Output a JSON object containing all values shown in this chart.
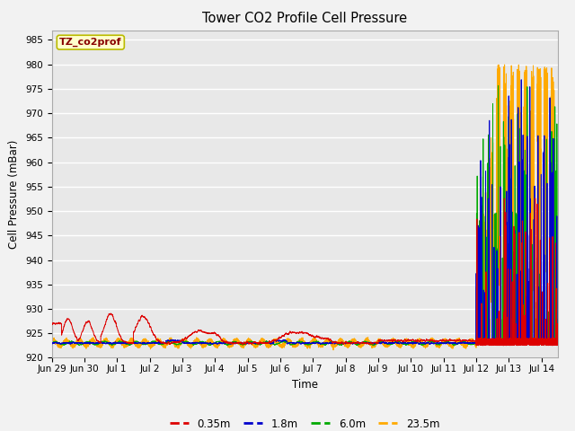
{
  "title": "Tower CO2 Profile Cell Pressure",
  "xlabel": "Time",
  "ylabel": "Cell Pressure (mBar)",
  "ylim": [
    920,
    987
  ],
  "yticks": [
    920,
    925,
    930,
    935,
    940,
    945,
    950,
    955,
    960,
    965,
    970,
    975,
    980,
    985
  ],
  "xtick_labels": [
    "Jun 29",
    "Jun 30",
    "Jul 1",
    "Jul 2",
    "Jul 3",
    "Jul 4",
    "Jul 5",
    "Jul 6",
    "Jul 7",
    "Jul 8",
    "Jul 9",
    "Jul 10",
    "Jul 11",
    "Jul 12",
    "Jul 13",
    "Jul 14"
  ],
  "series_colors": {
    "0.35m": "#dd0000",
    "1.8m": "#0000cc",
    "6.0m": "#00aa00",
    "23.5m": "#ffaa00"
  },
  "series_labels": [
    "0.35m",
    "1.8m",
    "6.0m",
    "23.5m"
  ],
  "annotation_text": "TZ_co2prof",
  "annotation_bg": "#ffffcc",
  "annotation_border": "#bbbb00",
  "annotation_text_color": "#880000",
  "plot_bg": "#e8e8e8",
  "fig_bg": "#f2f2f2",
  "grid_color": "#ffffff",
  "base_pressure": 923.0,
  "seed": 42
}
